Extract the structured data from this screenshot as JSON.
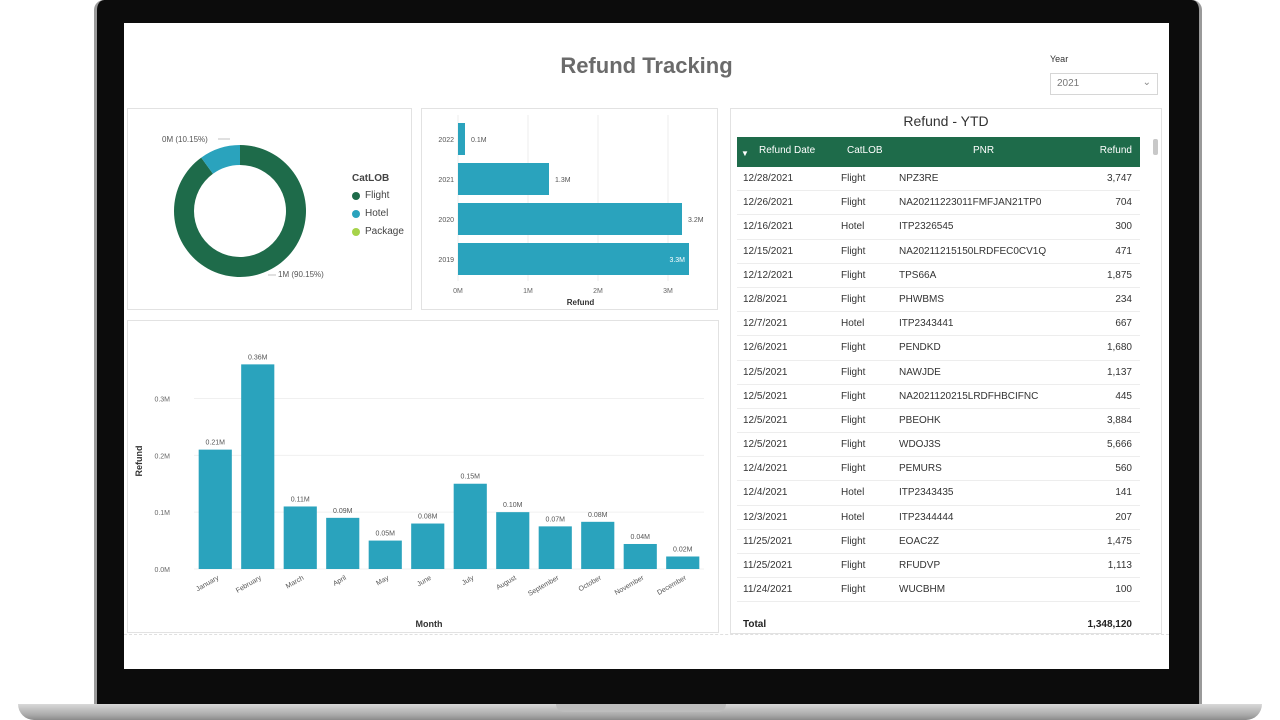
{
  "dashboard": {
    "title": "Refund Tracking",
    "year_filter": {
      "label": "Year",
      "value": "2021"
    }
  },
  "donut": {
    "legend_title": "CatLOB",
    "legend_items": [
      {
        "label": "Flight",
        "color": "#1e6b4a"
      },
      {
        "label": "Hotel",
        "color": "#2aa3bd"
      },
      {
        "label": "Package",
        "color": "#a6d34a"
      }
    ]
  },
  "table": {
    "title": "Refund - YTD",
    "columns": [
      "Refund Date",
      "CatLOB",
      "PNR",
      "Refund"
    ],
    "rows": [
      [
        "12/28/2021",
        "Flight",
        "NPZ3RE",
        "3,747"
      ],
      [
        "12/26/2021",
        "Flight",
        "NA20211223011FMFJAN21TP0",
        "704"
      ],
      [
        "12/16/2021",
        "Hotel",
        "ITP2326545",
        "300"
      ],
      [
        "12/15/2021",
        "Flight",
        "NA20211215150LRDFEC0CV1Q",
        "471"
      ],
      [
        "12/12/2021",
        "Flight",
        "TPS66A",
        "1,875"
      ],
      [
        "12/8/2021",
        "Flight",
        "PHWBMS",
        "234"
      ],
      [
        "12/7/2021",
        "Hotel",
        "ITP2343441",
        "667"
      ],
      [
        "12/6/2021",
        "Flight",
        "PENDKD",
        "1,680"
      ],
      [
        "12/5/2021",
        "Flight",
        "NAWJDE",
        "1,137"
      ],
      [
        "12/5/2021",
        "Flight",
        "NA2021120215LRDFHBCIFNC",
        "445"
      ],
      [
        "12/5/2021",
        "Flight",
        "PBEOHK",
        "3,884"
      ],
      [
        "12/5/2021",
        "Flight",
        "WDOJ3S",
        "5,666"
      ],
      [
        "12/4/2021",
        "Flight",
        "PEMURS",
        "560"
      ],
      [
        "12/4/2021",
        "Hotel",
        "ITP2343435",
        "141"
      ],
      [
        "12/3/2021",
        "Hotel",
        "ITP2344444",
        "207"
      ],
      [
        "11/25/2021",
        "Flight",
        "EOAC2Z",
        "1,475"
      ],
      [
        "11/25/2021",
        "Flight",
        "RFUDVP",
        "1,113"
      ],
      [
        "11/24/2021",
        "Flight",
        "WUCBHM",
        "100"
      ]
    ],
    "total_label": "Total",
    "total_value": "1,348,120"
  },
  "colors": {
    "accent_green": "#1e6b4a",
    "bar_teal": "#2aa3bd",
    "package_lime": "#a6d34a"
  },
  "chart_data": [
    {
      "type": "pie",
      "categories": [
        "Flight",
        "Hotel",
        "Package"
      ],
      "values": [
        90,
        10,
        0
      ],
      "labels": [
        "1M (90.15%)",
        "0M (10.15%)",
        ""
      ],
      "legend_title": "CatLOB",
      "legend_placement": "right"
    },
    {
      "type": "bar",
      "orientation": "horizontal",
      "categories": [
        "2022",
        "2021",
        "2020",
        "2019"
      ],
      "values": [
        0.1,
        1.3,
        3.2,
        3.3
      ],
      "data_labels": [
        "0.1M",
        "1.3M",
        "3.2M",
        "3.3M"
      ],
      "xlabel": "Refund",
      "xlim": [
        0,
        3.5
      ],
      "x_ticks": [
        "0M",
        "1M",
        "2M",
        "3M"
      ],
      "color": "#2aa3bd"
    },
    {
      "type": "bar",
      "categories": [
        "January",
        "February",
        "March",
        "April",
        "May",
        "June",
        "July",
        "August",
        "September",
        "October",
        "November",
        "December"
      ],
      "values": [
        0.21,
        0.36,
        0.11,
        0.09,
        0.05,
        0.08,
        0.15,
        0.1,
        0.075,
        0.083,
        0.044,
        0.022
      ],
      "data_labels": [
        "0.21M",
        "0.36M",
        "0.11M",
        "0.09M",
        "0.05M",
        "0.08M",
        "0.15M",
        "0.10M",
        "0.07M",
        "0.08M",
        "0.04M",
        "0.02M"
      ],
      "xlabel": "Month",
      "ylabel": "Refund",
      "ylim": [
        0,
        0.38
      ],
      "y_ticks": [
        "0.0M",
        "0.1M",
        "0.2M",
        "0.3M"
      ],
      "color": "#2aa3bd"
    }
  ]
}
